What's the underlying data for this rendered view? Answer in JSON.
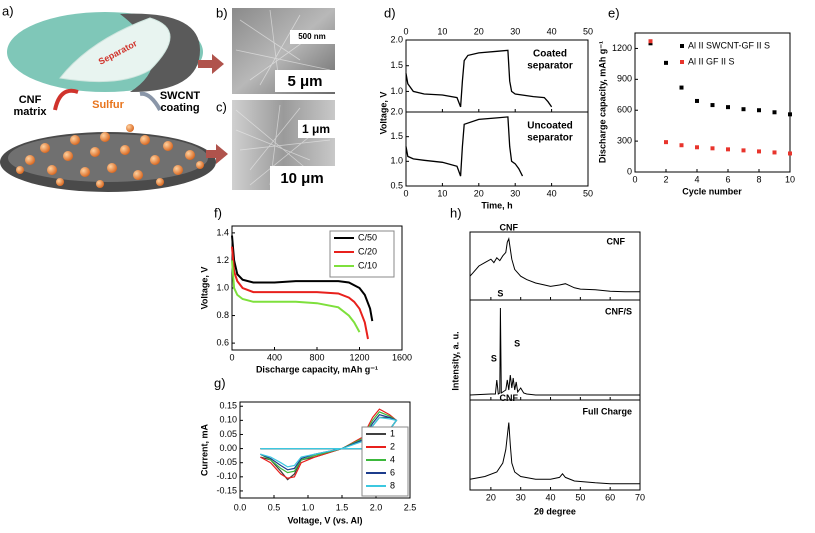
{
  "figure": {
    "panel_labels": [
      "a)",
      "b)",
      "c)",
      "d)",
      "e)",
      "f)",
      "g)",
      "h)"
    ]
  },
  "schematic": {
    "separator": "Separator",
    "sulfur": "Sulfur",
    "cnf_matrix": [
      "CNF",
      "matrix"
    ],
    "swcnt_coating": [
      "SWCNT",
      "coating"
    ]
  },
  "micrographs": [
    {
      "scale_bars": [
        "500 nm",
        "5 μm"
      ]
    },
    {
      "scale_bars": [
        "1 μm",
        "10 μm"
      ]
    }
  ],
  "chart_data": [
    {
      "type": "line",
      "xlabel": "Time, h",
      "ylabel": "Voltage, V",
      "xlim": [
        0,
        50
      ],
      "xticks": [
        0,
        10,
        20,
        30,
        40,
        50
      ],
      "subplots": [
        {
          "annotation": [
            "Coated",
            "separator"
          ],
          "ylim": [
            0.6,
            2.0
          ],
          "yticks": [
            {
              "value": 1,
              "label": "1.0"
            },
            1.5,
            {
              "value": 2,
              "label": "2.0"
            }
          ],
          "series": [
            {
              "color": "#000000",
              "x": [
                0,
                0.5,
                2,
                5,
                10,
                14,
                15,
                15.5,
                16,
                17,
                20,
                25,
                28,
                28.5,
                29,
                30,
                35,
                38,
                39,
                40
              ],
              "values": [
                1.35,
                1.15,
                1.0,
                0.95,
                0.93,
                0.88,
                0.7,
                1.2,
                1.6,
                1.7,
                1.75,
                1.78,
                1.8,
                1.2,
                1.0,
                0.95,
                0.9,
                0.88,
                0.8,
                0.7
              ]
            }
          ]
        },
        {
          "annotation": [
            "Uncoated",
            "separator"
          ],
          "ylim": [
            0.5,
            2.0
          ],
          "yticks": [
            0.5,
            {
              "value": 1,
              "label": "1.0"
            },
            1.5,
            {
              "value": 2,
              "label": "2.0"
            }
          ],
          "series": [
            {
              "color": "#000000",
              "x": [
                0,
                0.5,
                2,
                5,
                10,
                14,
                15,
                15.5,
                16,
                20,
                25,
                28,
                28.5,
                29,
                30,
                31,
                32
              ],
              "values": [
                1.3,
                1.1,
                1.05,
                1.02,
                0.98,
                0.9,
                0.7,
                1.3,
                1.75,
                1.85,
                1.88,
                1.9,
                1.3,
                1.0,
                0.95,
                0.85,
                0.7
              ]
            }
          ]
        }
      ]
    },
    {
      "type": "scatter",
      "xlabel": "Cycle number",
      "ylabel": "Discharge capacity, mAh g⁻¹",
      "xlim": [
        0,
        10
      ],
      "xticks": [
        0,
        2,
        4,
        6,
        8,
        10
      ],
      "ylim": [
        0,
        1350
      ],
      "yticks": [
        0,
        300,
        600,
        900,
        1200
      ],
      "legend": "upper right",
      "series": [
        {
          "name": "Al II SWCNT-GF II S",
          "color": "#000000",
          "x": [
            1,
            2,
            3,
            4,
            5,
            6,
            7,
            8,
            9,
            10
          ],
          "values": [
            1250,
            1060,
            820,
            690,
            650,
            630,
            610,
            600,
            580,
            560
          ]
        },
        {
          "name": "Al II GF II S",
          "color": "#e8342c",
          "x": [
            1,
            2,
            3,
            4,
            5,
            6,
            7,
            8,
            9,
            10
          ],
          "values": [
            1270,
            290,
            260,
            240,
            230,
            220,
            210,
            200,
            190,
            180
          ]
        }
      ]
    },
    {
      "type": "line",
      "xlabel": "Discharge capacity, mAh g⁻¹",
      "ylabel": "Voltage, V",
      "xlim": [
        0,
        1600
      ],
      "xticks": [
        0,
        400,
        800,
        1200,
        1600
      ],
      "ylim": [
        0.55,
        1.45
      ],
      "yticks": [
        0.6,
        0.8,
        {
          "value": 1,
          "label": "1.0"
        },
        1.2,
        1.4
      ],
      "legend": "upper right",
      "series": [
        {
          "name": "C/50",
          "color": "#000000",
          "x": [
            0,
            20,
            50,
            100,
            200,
            400,
            600,
            800,
            1000,
            1100,
            1200,
            1250,
            1300,
            1320
          ],
          "values": [
            1.38,
            1.2,
            1.1,
            1.06,
            1.04,
            1.04,
            1.05,
            1.05,
            1.05,
            1.04,
            1.0,
            0.95,
            0.85,
            0.76
          ]
        },
        {
          "name": "C/20",
          "color": "#e8201c",
          "x": [
            0,
            20,
            50,
            100,
            200,
            400,
            600,
            800,
            1000,
            1100,
            1150,
            1200,
            1250,
            1280
          ],
          "values": [
            1.3,
            1.12,
            1.05,
            1.0,
            0.97,
            0.97,
            0.97,
            0.97,
            0.96,
            0.93,
            0.9,
            0.85,
            0.75,
            0.63
          ]
        },
        {
          "name": "C/10",
          "color": "#7ee03c",
          "x": [
            0,
            20,
            50,
            100,
            200,
            400,
            600,
            800,
            1000,
            1100,
            1150,
            1200
          ],
          "values": [
            1.2,
            1.0,
            0.95,
            0.92,
            0.9,
            0.9,
            0.9,
            0.89,
            0.86,
            0.8,
            0.75,
            0.68
          ]
        }
      ]
    },
    {
      "type": "line",
      "xlabel": "Voltage, V (vs. Al)",
      "ylabel": "Current, mA",
      "xlim": [
        0,
        2.5
      ],
      "xticks": [
        {
          "value": 0,
          "label": "0.0"
        },
        0.5,
        {
          "value": 1,
          "label": "1.0"
        },
        1.5,
        {
          "value": 2,
          "label": "2.0"
        },
        2.5
      ],
      "ylim": [
        -0.175,
        0.165
      ],
      "yticks": [
        -0.15,
        {
          "value": -0.1,
          "label": "-0.10"
        },
        -0.05,
        {
          "value": 0,
          "label": "0.00"
        },
        0.05,
        {
          "value": 0.1,
          "label": "0.10"
        },
        0.15
      ],
      "legend": "lower right",
      "series": [
        {
          "name": "1",
          "color": "#404040",
          "x": [
            0.3,
            0.45,
            0.6,
            0.7,
            0.8,
            0.9,
            1.1,
            1.5,
            1.8,
            1.95,
            2.05,
            2.2,
            2.3,
            2.0,
            1.5,
            0.3
          ],
          "values": [
            -0.03,
            -0.04,
            -0.08,
            -0.11,
            -0.09,
            -0.04,
            -0.03,
            0.0,
            0.03,
            0.08,
            0.11,
            0.11,
            0.1,
            0.0,
            0.0,
            0.0
          ]
        },
        {
          "name": "2",
          "color": "#e8201c",
          "x": [
            0.3,
            0.45,
            0.6,
            0.7,
            0.8,
            0.9,
            1.1,
            1.5,
            1.8,
            1.95,
            2.05,
            2.2,
            2.3,
            2.0,
            1.5,
            0.3
          ],
          "values": [
            -0.03,
            -0.05,
            -0.09,
            -0.105,
            -0.1,
            -0.05,
            -0.03,
            0.0,
            0.04,
            0.11,
            0.14,
            0.12,
            0.1,
            0.0,
            0.0,
            0.0
          ]
        },
        {
          "name": "4",
          "color": "#3cb83c",
          "x": [
            0.3,
            0.45,
            0.6,
            0.7,
            0.8,
            0.9,
            1.1,
            1.5,
            1.8,
            1.95,
            2.05,
            2.2,
            2.3,
            2.0,
            1.5,
            0.3
          ],
          "values": [
            -0.02,
            -0.04,
            -0.07,
            -0.085,
            -0.08,
            -0.04,
            -0.025,
            0.0,
            0.035,
            0.1,
            0.13,
            0.115,
            0.1,
            0.0,
            0.0,
            0.0
          ]
        },
        {
          "name": "6",
          "color": "#1c3c8c",
          "x": [
            0.3,
            0.45,
            0.6,
            0.7,
            0.8,
            0.9,
            1.1,
            1.5,
            1.8,
            1.95,
            2.05,
            2.2,
            2.3,
            2.0,
            1.5,
            0.3
          ],
          "values": [
            -0.02,
            -0.035,
            -0.06,
            -0.075,
            -0.07,
            -0.035,
            -0.02,
            0.0,
            0.03,
            0.09,
            0.12,
            0.11,
            0.1,
            0.0,
            0.0,
            0.0
          ]
        },
        {
          "name": "8",
          "color": "#3cc8e0",
          "x": [
            0.3,
            0.45,
            0.6,
            0.7,
            0.8,
            0.9,
            1.1,
            1.5,
            1.8,
            1.95,
            2.05,
            2.2,
            2.3,
            2.0,
            1.5,
            0.3
          ],
          "values": [
            -0.02,
            -0.03,
            -0.05,
            -0.065,
            -0.06,
            -0.03,
            -0.02,
            0.0,
            0.025,
            0.08,
            0.11,
            0.105,
            0.1,
            0.0,
            0.0,
            0.0
          ]
        }
      ]
    },
    {
      "type": "line",
      "xlabel": "2θ degree",
      "ylabel": "Intensity, a. u.",
      "xlim": [
        13,
        70
      ],
      "xticks": [
        20,
        30,
        40,
        50,
        60,
        70
      ],
      "subplots": [
        {
          "title": "CNF",
          "annotations": [
            "CNF"
          ],
          "ylim": [
            0,
            1
          ],
          "series": [
            {
              "color": "#000000",
              "x": [
                13,
                14,
                16,
                18,
                20,
                21,
                22,
                23,
                24,
                25,
                25.5,
                26,
                26.5,
                27,
                28,
                29,
                30,
                32,
                35,
                38,
                40,
                43,
                45,
                48,
                50,
                55,
                60,
                65,
                70
              ],
              "values": [
                0.35,
                0.4,
                0.5,
                0.55,
                0.6,
                0.55,
                0.62,
                0.58,
                0.65,
                0.7,
                0.85,
                0.9,
                0.75,
                0.6,
                0.45,
                0.4,
                0.35,
                0.3,
                0.25,
                0.22,
                0.2,
                0.22,
                0.24,
                0.18,
                0.16,
                0.15,
                0.13,
                0.12,
                0.12
              ]
            }
          ]
        },
        {
          "title": "CNF/S",
          "annotations": [
            "S",
            "S",
            "S"
          ],
          "ylim": [
            0,
            1
          ],
          "series": [
            {
              "color": "#000000",
              "x": [
                13,
                20,
                21.5,
                22,
                22.5,
                23,
                23.2,
                23.5,
                24,
                25,
                25.5,
                26,
                26.5,
                27,
                27.5,
                28,
                28.5,
                29,
                30,
                31,
                32,
                35,
                40,
                50,
                60,
                70
              ],
              "values": [
                0.05,
                0.06,
                0.06,
                0.2,
                0.06,
                0.07,
                0.92,
                0.07,
                0.08,
                0.1,
                0.2,
                0.1,
                0.25,
                0.12,
                0.22,
                0.1,
                0.18,
                0.08,
                0.12,
                0.07,
                0.06,
                0.05,
                0.05,
                0.05,
                0.05,
                0.05
              ]
            }
          ]
        },
        {
          "title": "Full Charge",
          "annotations": [
            "CNF"
          ],
          "ylim": [
            0,
            1
          ],
          "series": [
            {
              "color": "#000000",
              "x": [
                13,
                18,
                22,
                24,
                25,
                25.5,
                26,
                26.5,
                27,
                28,
                30,
                35,
                40,
                43,
                44,
                45,
                48,
                55,
                60,
                70
              ],
              "values": [
                0.12,
                0.15,
                0.2,
                0.3,
                0.45,
                0.6,
                0.75,
                0.5,
                0.3,
                0.2,
                0.15,
                0.12,
                0.12,
                0.14,
                0.18,
                0.14,
                0.1,
                0.08,
                0.07,
                0.07
              ]
            }
          ]
        }
      ]
    }
  ]
}
